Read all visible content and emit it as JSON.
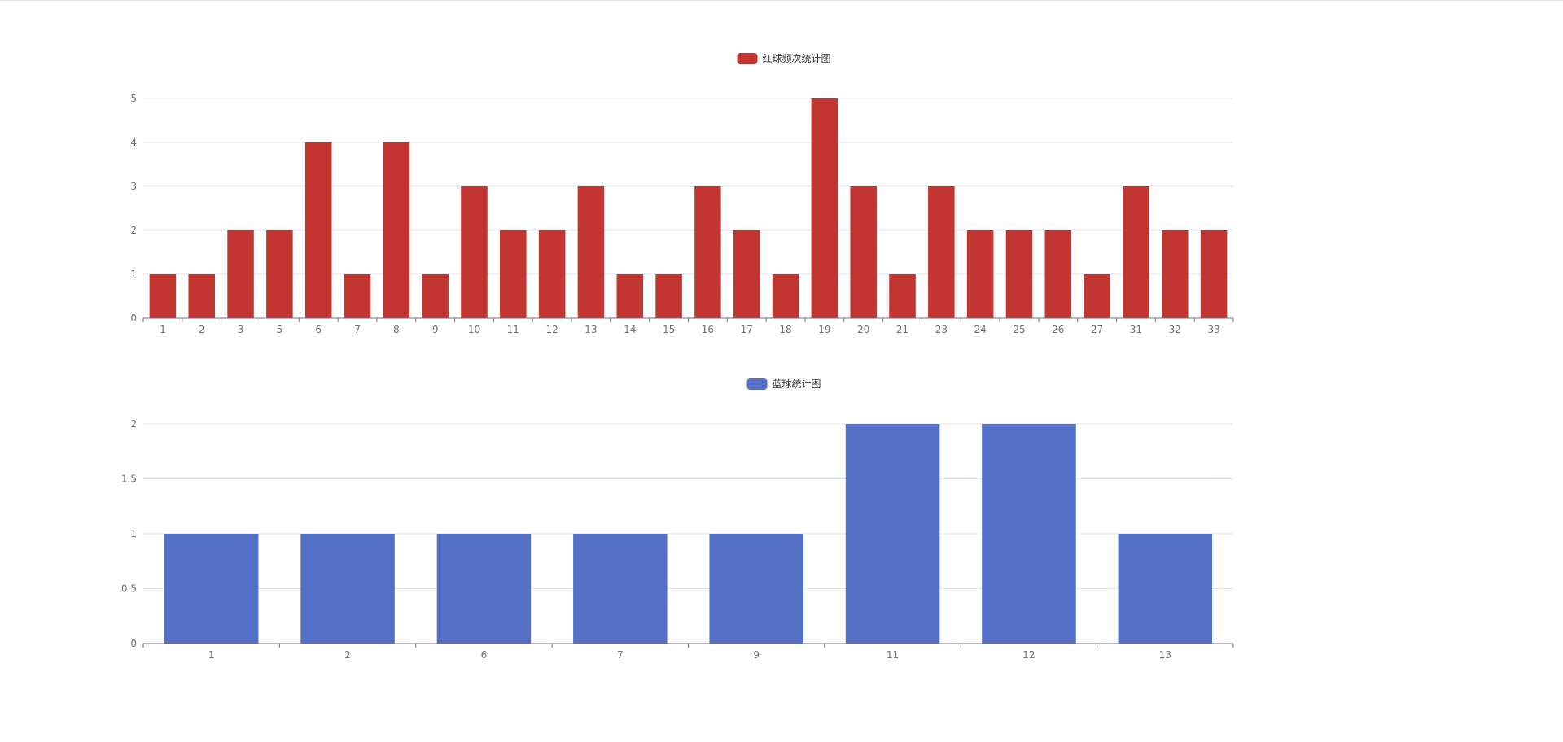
{
  "chart_data": [
    {
      "type": "bar",
      "legend": "红球频次统计图",
      "color": "#c23531",
      "categories": [
        "1",
        "2",
        "3",
        "5",
        "6",
        "7",
        "8",
        "9",
        "10",
        "11",
        "12",
        "13",
        "14",
        "15",
        "16",
        "17",
        "18",
        "19",
        "20",
        "21",
        "23",
        "24",
        "25",
        "26",
        "27",
        "31",
        "32",
        "33"
      ],
      "values": [
        1,
        1,
        2,
        2,
        4,
        1,
        4,
        1,
        3,
        2,
        2,
        3,
        1,
        1,
        3,
        2,
        1,
        5,
        3,
        1,
        3,
        2,
        2,
        2,
        1,
        3,
        2,
        2
      ],
      "yticks": [
        0,
        1,
        2,
        3,
        4,
        5
      ],
      "ylim": [
        0,
        5
      ],
      "grid": true,
      "legend_position": "top-center"
    },
    {
      "type": "bar",
      "legend": "蓝球统计图",
      "color": "#5470c6",
      "categories": [
        "1",
        "2",
        "6",
        "7",
        "9",
        "11",
        "12",
        "13"
      ],
      "values": [
        1,
        1,
        1,
        1,
        1,
        2,
        2,
        1
      ],
      "yticks": [
        0,
        0.5,
        1,
        1.5,
        2
      ],
      "ylim": [
        0,
        2
      ],
      "grid": true,
      "legend_position": "top-center"
    }
  ]
}
